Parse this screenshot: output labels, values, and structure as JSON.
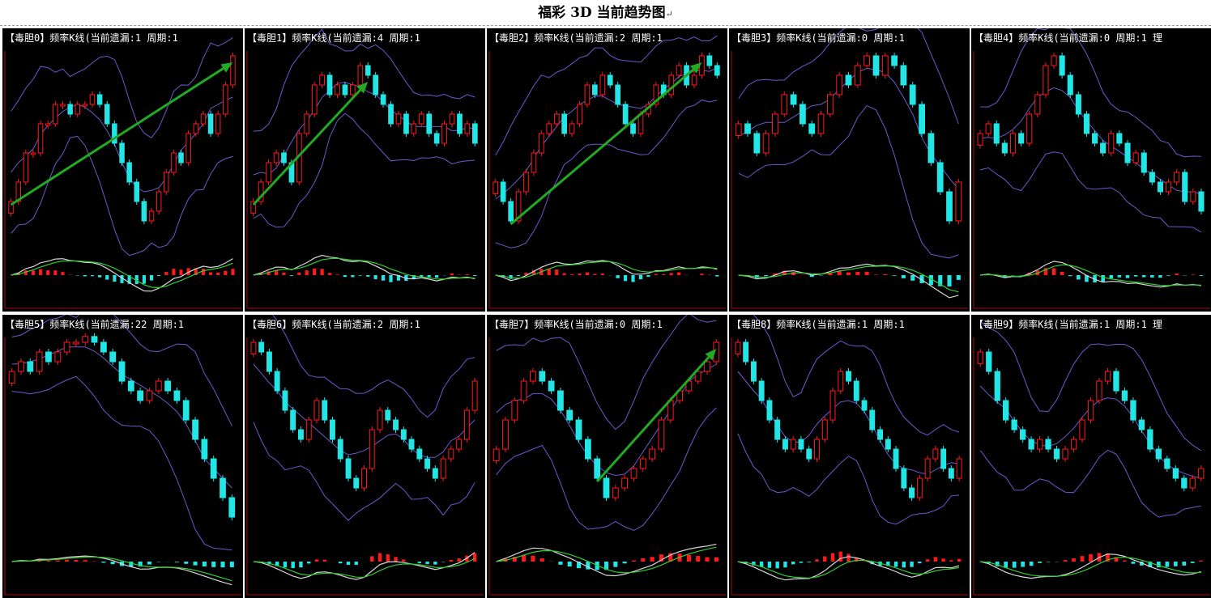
{
  "page": {
    "title": "福彩 3D 当前趋势图",
    "title_mark": "↵"
  },
  "colors": {
    "up": "#ff1a1a",
    "down": "#22e5e5",
    "band": "#6a5acd",
    "axis": "#a01010",
    "arrow": "#22aa22",
    "dif": "#d8d8d8",
    "dea": "#33cc33",
    "background": "#000000"
  },
  "chart_data": [
    {
      "type": "candlestick",
      "title": "【毒胆0】频率K线(当前遗漏:1 周期:1",
      "closes": [
        20,
        30,
        45,
        45,
        60,
        60,
        70,
        70,
        65,
        70,
        70,
        75,
        70,
        60,
        50,
        40,
        30,
        20,
        10,
        15,
        25,
        35,
        45,
        40,
        55,
        60,
        65,
        55,
        65,
        80,
        95
      ],
      "trend_arrow": true
    },
    {
      "type": "candlestick",
      "title": "【毒胆1】频率K线(当前遗漏:4 周期:1",
      "closes": [
        20,
        30,
        40,
        45,
        40,
        30,
        55,
        65,
        80,
        85,
        75,
        80,
        75,
        80,
        90,
        85,
        75,
        70,
        60,
        65,
        55,
        60,
        65,
        55,
        50,
        60,
        65,
        55,
        60,
        50
      ],
      "trend_arrow": true
    },
    {
      "type": "candlestick",
      "title": "【毒胆2】频率K线(当前遗漏:2 周期:1",
      "closes": [
        30,
        20,
        10,
        25,
        35,
        45,
        55,
        60,
        65,
        55,
        60,
        70,
        80,
        75,
        85,
        80,
        70,
        60,
        55,
        65,
        70,
        80,
        75,
        85,
        90,
        80,
        85,
        95,
        90,
        85
      ],
      "trend_arrow": true
    },
    {
      "type": "candlestick",
      "title": "【毒胆3】频率K线(当前遗漏:0 周期:1",
      "closes": [
        60,
        55,
        45,
        55,
        65,
        75,
        70,
        60,
        55,
        65,
        75,
        85,
        80,
        90,
        95,
        85,
        95,
        90,
        80,
        70,
        55,
        40,
        25,
        10,
        30
      ],
      "trend_arrow": false
    },
    {
      "type": "candlestick",
      "title": "【毒胆4】频率K线(当前遗漏:0 周期:1 理",
      "closes": [
        55,
        60,
        50,
        45,
        55,
        50,
        65,
        75,
        90,
        95,
        85,
        75,
        65,
        55,
        50,
        45,
        55,
        50,
        40,
        45,
        35,
        30,
        25,
        30,
        35,
        20,
        25,
        15
      ],
      "trend_arrow": false
    },
    {
      "type": "candlestick",
      "title": "【毒胆5】频率K线(当前遗漏:22 周期:1",
      "closes": [
        80,
        85,
        80,
        90,
        85,
        90,
        95,
        95,
        98,
        95,
        90,
        85,
        75,
        70,
        65,
        70,
        75,
        70,
        65,
        55,
        45,
        35,
        25,
        15,
        5
      ],
      "trend_arrow": false
    },
    {
      "type": "candlestick",
      "title": "【毒胆6】频率K线(当前遗漏:2 周期:1",
      "closes": [
        95,
        90,
        80,
        70,
        60,
        50,
        45,
        55,
        65,
        55,
        45,
        35,
        25,
        20,
        30,
        50,
        60,
        55,
        50,
        45,
        40,
        35,
        30,
        25,
        35,
        40,
        45,
        60,
        75
      ],
      "trend_arrow": false
    },
    {
      "type": "candlestick",
      "title": "【毒胆7】频率K线(当前遗漏:0 周期:1",
      "closes": [
        40,
        55,
        65,
        75,
        80,
        75,
        70,
        60,
        55,
        45,
        35,
        25,
        15,
        20,
        25,
        30,
        35,
        40,
        55,
        65,
        70,
        75,
        80,
        85,
        95
      ],
      "trend_arrow": true
    },
    {
      "type": "candlestick",
      "title": "【毒胆8】频率K线(当前遗漏:1 周期:1",
      "closes": [
        95,
        85,
        75,
        65,
        55,
        45,
        40,
        45,
        40,
        35,
        45,
        55,
        70,
        80,
        75,
        65,
        60,
        50,
        45,
        40,
        30,
        20,
        15,
        25,
        35,
        40,
        30,
        25,
        35
      ],
      "trend_arrow": false
    },
    {
      "type": "candlestick",
      "title": "【毒胆9】频率K线(当前遗漏:1 周期:1 理",
      "closes": [
        90,
        80,
        65,
        55,
        50,
        45,
        40,
        45,
        40,
        35,
        40,
        45,
        55,
        65,
        75,
        80,
        70,
        65,
        55,
        50,
        40,
        35,
        30,
        25,
        20,
        25,
        30
      ],
      "trend_arrow": false
    }
  ]
}
